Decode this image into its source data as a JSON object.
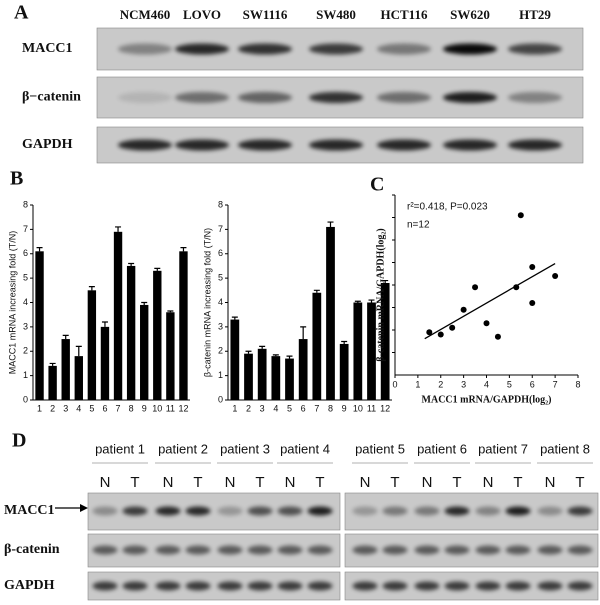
{
  "panel_a": {
    "label": "A",
    "lanes": [
      "NCM460",
      "LOVO",
      "SW1116",
      "SW480",
      "HCT116",
      "SW620",
      "HT29"
    ],
    "rows": [
      "MACC1",
      "β−catenin",
      "GAPDH"
    ]
  },
  "panel_b": {
    "label": "B"
  },
  "panel_c": {
    "label": "C"
  },
  "panel_d": {
    "label": "D",
    "patients": [
      {
        "name": "patient 1",
        "lanes": [
          "N",
          "T"
        ]
      },
      {
        "name": "patient 2",
        "lanes": [
          "N",
          "T"
        ]
      },
      {
        "name": "patient 3",
        "lanes": [
          "N",
          "T"
        ]
      },
      {
        "name": "patient 4",
        "lanes": [
          "N",
          "T"
        ]
      },
      {
        "name": "patient 5",
        "lanes": [
          "N",
          "T"
        ]
      },
      {
        "name": "patient 6",
        "lanes": [
          "N",
          "T"
        ]
      },
      {
        "name": "patient 7",
        "lanes": [
          "N",
          "T"
        ]
      },
      {
        "name": "patient 8",
        "lanes": [
          "N",
          "T"
        ]
      }
    ],
    "rows": [
      "MACC1",
      "β-catenin",
      "GAPDH"
    ]
  },
  "chart_data": [
    {
      "type": "bar",
      "y_label": "MACC1 mRNA increasing fold (T/N)",
      "categories": [
        "1",
        "2",
        "3",
        "4",
        "5",
        "6",
        "7",
        "8",
        "9",
        "10",
        "11",
        "12"
      ],
      "values": [
        6.1,
        1.4,
        2.5,
        1.8,
        4.5,
        3.0,
        6.9,
        5.5,
        3.9,
        5.3,
        3.6,
        6.1
      ],
      "errors": [
        0.15,
        0.1,
        0.15,
        0.4,
        0.15,
        0.2,
        0.2,
        0.1,
        0.1,
        0.1,
        0.05,
        0.15
      ],
      "color": "#000000",
      "ylim": [
        0,
        8
      ],
      "yticks": [
        0,
        1,
        2,
        3,
        4,
        5,
        6,
        7,
        8
      ]
    },
    {
      "type": "bar",
      "y_label": "β-catenin mRNA increasing fold (T/N)",
      "categories": [
        "1",
        "2",
        "3",
        "4",
        "5",
        "6",
        "7",
        "8",
        "9",
        "10",
        "11",
        "12"
      ],
      "values": [
        3.3,
        1.9,
        2.1,
        1.8,
        1.7,
        2.5,
        4.4,
        7.1,
        2.3,
        4.0,
        4.0,
        4.8
      ],
      "errors": [
        0.1,
        0.1,
        0.1,
        0.05,
        0.1,
        0.5,
        0.1,
        0.2,
        0.1,
        0.05,
        0.1,
        0.1
      ],
      "color": "#000000",
      "ylim": [
        0,
        8
      ],
      "yticks": [
        0,
        1,
        2,
        3,
        4,
        5,
        6,
        7,
        8
      ]
    },
    {
      "type": "scatter",
      "x_label": "MACC1 mRNA/GAPDH(log₂)",
      "y_label": "β-catenin mRNA/GAPDH(log₂)",
      "annotations": [
        "r²=0.418,  P=0.023",
        "n=12"
      ],
      "x": [
        1.5,
        2.0,
        2.5,
        3.0,
        3.5,
        4.0,
        4.5,
        5.3,
        5.5,
        6.0,
        6.0,
        7.0
      ],
      "values": [
        1.9,
        1.8,
        2.1,
        2.9,
        3.9,
        2.3,
        1.7,
        3.9,
        7.1,
        3.2,
        4.8,
        4.4
      ],
      "color": "#000000",
      "trendline": true,
      "xlim": [
        0,
        8
      ],
      "xticks": [
        0,
        1,
        2,
        3,
        4,
        5,
        6,
        7,
        8
      ],
      "ylim": [
        0,
        8
      ]
    }
  ]
}
